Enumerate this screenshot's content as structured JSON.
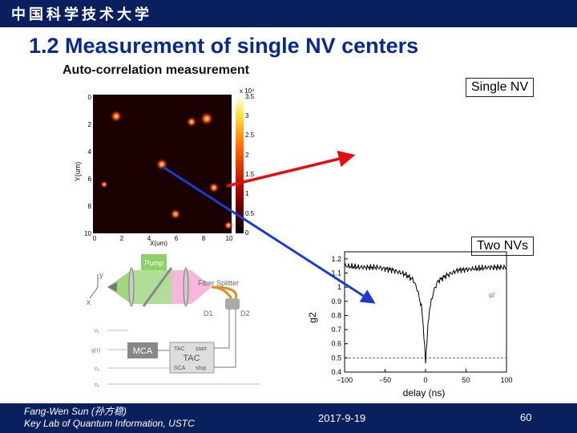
{
  "header": {
    "logo_text": "中国科学技术大学"
  },
  "slide": {
    "title": "1.2 Measurement of single NV centers",
    "subtitle": "Auto-correlation measurement",
    "callouts": {
      "single": "Single NV",
      "two": "Two NVs"
    }
  },
  "scan": {
    "y_label": "Y(um)",
    "x_label": "X(um)",
    "y_ticks": [
      "0",
      "2",
      "4",
      "6",
      "8",
      "10"
    ],
    "x_ticks": [
      "0",
      "2",
      "4",
      "6",
      "8",
      "10"
    ],
    "colorbar_exp": "x 10⁴",
    "colorbar_ticks": [
      "3.5",
      "3",
      "2.5",
      "2",
      "1.5",
      "1",
      "0.5",
      "0"
    ]
  },
  "setup": {
    "labels": {
      "pump": "Pump",
      "fiber": "Fiber Splitter",
      "d1": "D1",
      "d2": "D2",
      "mca": "MCA",
      "tac": "TAC",
      "tac_small": "TAC",
      "sca": "SCA",
      "start": "start",
      "stop": "stop",
      "y": "y",
      "x": "x",
      "r1": "n₁",
      "r2": "g(τ)",
      "r3": "n₂",
      "r4": "n₂"
    }
  },
  "g2": {
    "y_label": "g2",
    "x_label": "delay (ns)",
    "y_ticks": [
      "1.2",
      "1.1",
      "1",
      "0.9",
      "0.8",
      "0.7",
      "0.6",
      "0.5",
      "0.4"
    ],
    "x_ticks": [
      "−100",
      "−50",
      "0",
      "50",
      "100"
    ],
    "legend": "g2"
  },
  "chart_data": {
    "type": "line",
    "xlabel": "delay (ns)",
    "ylabel": "g2",
    "xlim": [
      -100,
      100
    ],
    "ylim": [
      0.4,
      1.25
    ],
    "series": [
      {
        "x": [
          -100,
          -80,
          -60,
          -40,
          -25,
          -15,
          -10,
          -5,
          -3,
          0,
          3,
          5,
          10,
          15,
          25,
          40,
          60,
          80,
          100
        ],
        "y": [
          1.15,
          1.14,
          1.14,
          1.12,
          1.09,
          1.05,
          0.98,
          0.86,
          0.74,
          0.47,
          0.72,
          0.85,
          0.97,
          1.04,
          1.08,
          1.12,
          1.13,
          1.14,
          1.14
        ]
      }
    ],
    "reference_line": 0.5
  },
  "footer": {
    "author": "Fang-Wen Sun (孙方稳)",
    "lab": "Key Lab of Quantum Information, USTC",
    "date": "2017-9-19",
    "page": "60"
  },
  "colors": {
    "bar": "#0a1f5e",
    "title": "#0a2a8a",
    "arrow_red": "#e01010",
    "arrow_blue": "#1a3ad0",
    "ref_line": "#2aa02a"
  }
}
